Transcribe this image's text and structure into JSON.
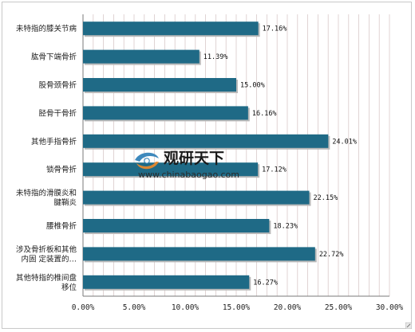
{
  "chart_data": {
    "type": "bar",
    "orientation": "horizontal",
    "title": "",
    "xlabel": "",
    "ylabel": "",
    "categories": [
      [
        "未特指的膝关节病"
      ],
      [
        "肱骨下端骨折"
      ],
      [
        "股骨颈骨折"
      ],
      [
        "胫骨干骨折"
      ],
      [
        "其他手指骨折"
      ],
      [
        "锁骨骨折"
      ],
      [
        "未特指的滑膜炎和",
        "腱鞘炎"
      ],
      [
        "腰椎骨折"
      ],
      [
        "涉及骨折板和其他",
        "内固 定装置的…"
      ],
      [
        "其他特指的椎间盘",
        "移位"
      ]
    ],
    "values": [
      17.16,
      11.39,
      15.0,
      16.16,
      24.01,
      17.12,
      22.15,
      18.23,
      22.72,
      16.27
    ],
    "value_labels": [
      "17.16%",
      "11.39%",
      "15.00%",
      "16.16%",
      "24.01%",
      "17.12%",
      "22.15%",
      "18.23%",
      "22.72%",
      "16.27%"
    ],
    "xlim": [
      0,
      30
    ],
    "xticks": [
      "0.00%",
      "5.00%",
      "10.00%",
      "15.00%",
      "20.00%",
      "25.00%",
      "30.00%"
    ],
    "grid": true,
    "colors": {
      "bar": "#1f6a86",
      "shadow": "#b9b9b9",
      "grid": "#d9c9c9",
      "axis": "#7a7a7a"
    }
  },
  "watermark": {
    "cn": "观研天下",
    "url": "www.chinabaogao.com"
  },
  "icons": {
    "watermark_logo": "swirl-logo-icon",
    "corner_badge": "corner-badge-icon"
  }
}
